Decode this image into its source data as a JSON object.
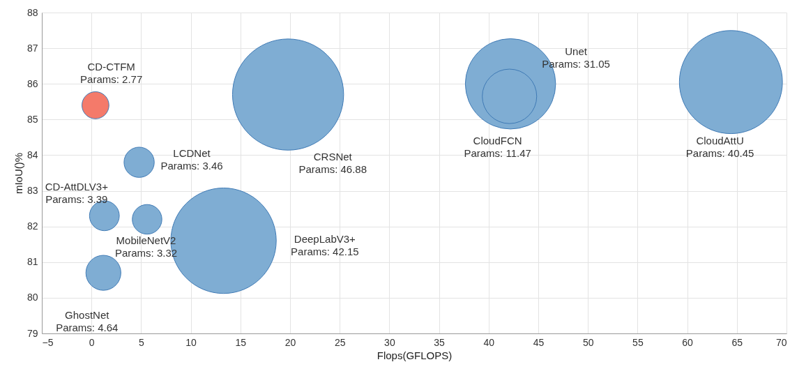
{
  "chart_data": {
    "type": "bubble",
    "xlabel": "Flops(GFLOPS)",
    "ylabel": "mIoU()%",
    "x": [
      0.4,
      4.8,
      1.3,
      5.6,
      1.2,
      13.3,
      19.8,
      42.2,
      42.1,
      64.4
    ],
    "values": [
      85.4,
      83.8,
      82.3,
      82.2,
      80.7,
      81.6,
      85.7,
      86.0,
      85.65,
      86.05
    ],
    "sizes": [
      0.059,
      0.074,
      0.072,
      0.071,
      0.099,
      0.9,
      1,
      0.66,
      0.24,
      0.86
    ],
    "colors": [
      "#f47a6a",
      "#7fadd3",
      "#7fadd3",
      "#7fadd3",
      "#7fadd3",
      "#7fadd3",
      "#7fadd3",
      "#7fadd3",
      "#7fadd3",
      "#7fadd3"
    ],
    "xlim": [
      -5,
      70
    ],
    "xticks": [
      -5,
      0,
      5,
      10,
      15,
      20,
      25,
      30,
      35,
      40,
      45,
      50,
      55,
      60,
      65,
      70
    ],
    "ylim": [
      79,
      88
    ],
    "yticks": [
      79,
      80,
      81,
      82,
      83,
      84,
      85,
      86,
      87,
      88
    ],
    "grid": true,
    "annotations": [
      "CD-CTFM\nParams:  2.77",
      "LCDNet\nParams:  3.46",
      "CD-AttDLV3+\nParams:  3.39",
      "MobileNetV2\nParams:  3.32",
      "GhostNet\nParams:  4.64",
      "DeepLabV3+\nParams:  42.15",
      "CRSNet\nParams:  46.88",
      "Unet\nParams:  31.05",
      "CloudFCN\nParams:  11.47",
      "CloudAttU\nParams:  40.45"
    ]
  }
}
